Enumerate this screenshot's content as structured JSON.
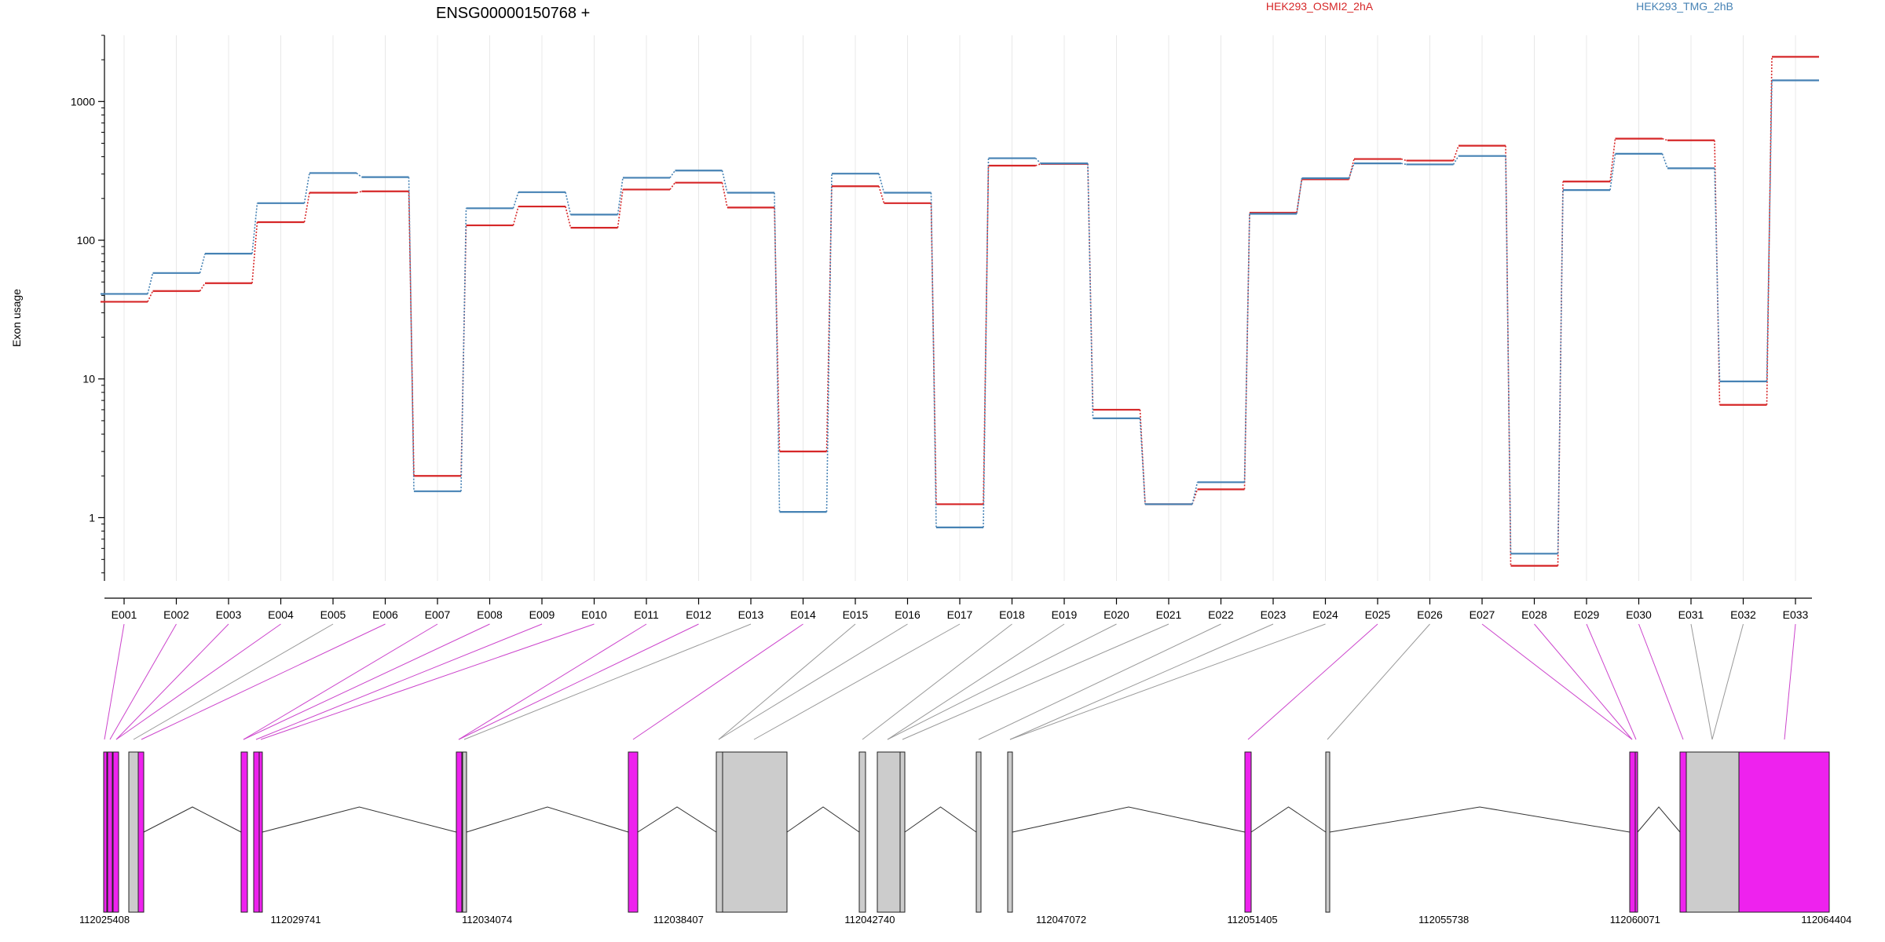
{
  "chart_data": {
    "type": "line",
    "title": "ENSG00000150768 +",
    "ylabel": "Exon usage",
    "yscale": "log",
    "ylim": [
      0.35,
      3000
    ],
    "yticks": [
      "1",
      "10",
      "100",
      "1000"
    ],
    "grid": "vertical",
    "legend_placement": "top",
    "categories": [
      "E001",
      "E002",
      "E003",
      "E004",
      "E005",
      "E006",
      "E007",
      "E008",
      "E009",
      "E010",
      "E011",
      "E012",
      "E013",
      "E014",
      "E015",
      "E016",
      "E017",
      "E018",
      "E019",
      "E020",
      "E021",
      "E022",
      "E023",
      "E024",
      "E025",
      "E026",
      "E027",
      "E028",
      "E029",
      "E030",
      "E031",
      "E032",
      "E033"
    ],
    "series": [
      {
        "name": "HEK293_OSMI2_2hA",
        "color": "#d62728",
        "values": [
          36,
          43,
          49,
          135,
          220,
          225,
          2.0,
          128,
          175,
          123,
          232,
          260,
          172,
          3.0,
          245,
          185,
          1.25,
          345,
          355,
          6.0,
          1.25,
          1.6,
          158,
          275,
          385,
          375,
          480,
          0.45,
          265,
          540,
          525,
          6.5,
          2100
        ]
      },
      {
        "name": "HEK293_TMG_2hB",
        "color": "#4682b4",
        "values": [
          41,
          58,
          80,
          185,
          305,
          285,
          1.55,
          170,
          222,
          153,
          282,
          318,
          220,
          1.1,
          302,
          220,
          0.85,
          390,
          358,
          5.2,
          1.25,
          1.8,
          155,
          280,
          358,
          352,
          405,
          0.55,
          230,
          420,
          330,
          9.6,
          1420
        ]
      }
    ],
    "gene_model": {
      "coordinate_ticks": [
        "112025408",
        "112029741",
        "112034074",
        "112038407",
        "112042740",
        "112047072",
        "112051405",
        "112055738",
        "112060071",
        "112064404"
      ],
      "exon_colors": {
        "significant": "#ee22ee",
        "other": "#cccccc"
      }
    }
  }
}
